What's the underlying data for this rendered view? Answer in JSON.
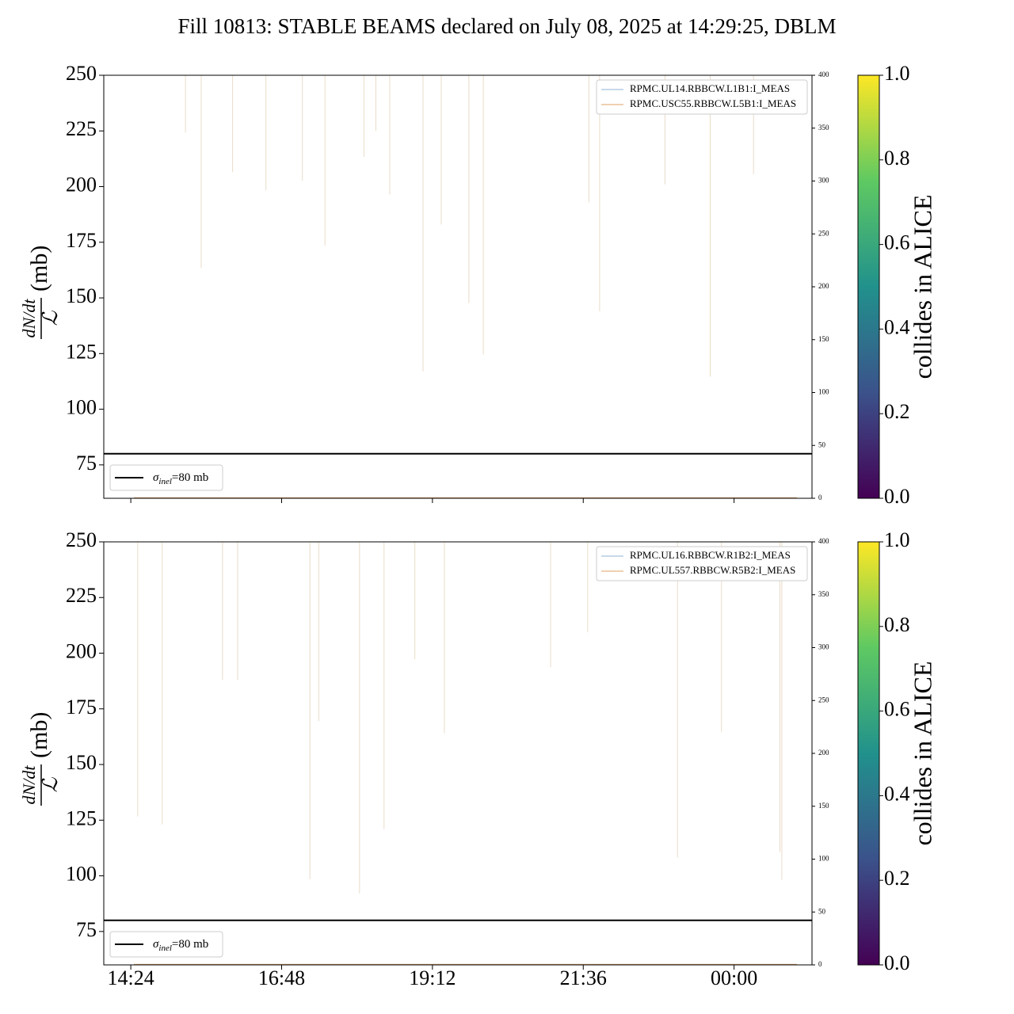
{
  "figure_title": "Fill 10813: STABLE BEAMS declared on July 08, 2025 at 14:29:25, DBLM",
  "chart_data": [
    {
      "type": "line",
      "ylabel": {
        "numerator": "dN/dt",
        "denominator": "ℒ",
        "unit": "(mb)"
      },
      "xlim": [
        13.97,
        25.24
      ],
      "xticks": [
        {
          "value": 14.4,
          "label": "14:24"
        },
        {
          "value": 16.8,
          "label": "16:48"
        },
        {
          "value": 19.2,
          "label": "19:12"
        },
        {
          "value": 21.6,
          "label": "21:36"
        },
        {
          "value": 24,
          "label": "00:00"
        }
      ],
      "show_xtick_labels": false,
      "ylim": [
        60,
        250
      ],
      "yticks": [
        75,
        100,
        125,
        150,
        175,
        200,
        225,
        250
      ],
      "y2lim": [
        0,
        400
      ],
      "y2ticks": [
        0,
        50,
        100,
        150,
        200,
        250,
        300,
        350,
        400
      ],
      "hline": {
        "value": 80,
        "color": "#000000",
        "symbol": "σ",
        "subscript": "inel",
        "text": "=80 mb",
        "legend": "lower left"
      },
      "spikes": {
        "color": "#e9dcc8",
        "x": [
          15.27,
          15.52,
          16.02,
          16.55,
          17.13,
          17.49,
          18.11,
          18.3,
          18.52,
          19.05,
          19.34,
          19.78,
          20.01,
          21.69,
          21.86,
          22.9,
          23.62,
          24.31
        ],
        "values": [
          224.3,
          163.4,
          206.5,
          198.3,
          202.6,
          173.4,
          213.3,
          225,
          196.5,
          117,
          183,
          147.7,
          124.6,
          193,
          144,
          201,
          114.6,
          205.5
        ]
      },
      "legend": "upper right",
      "series": [
        {
          "name": "RPMC.UL14.RBBCW.L1B1:I_MEAS",
          "color": "#8fb0d6",
          "axis": "y2",
          "x": [
            14.45,
            25.0
          ],
          "values": [
            0.5,
            0.5
          ]
        },
        {
          "name": "RPMC.USC55.RBBCW.L5B1:I_MEAS",
          "color": "#e0a060",
          "axis": "y2",
          "x": [
            14.45,
            25.0
          ],
          "values": [
            0.5,
            0.5
          ]
        }
      ],
      "colorbar": {
        "label": "collides in ALICE",
        "lim": [
          0,
          1
        ],
        "ticks": [
          {
            "value": 0,
            "label": "0.0"
          },
          {
            "value": 0.2,
            "label": "0.2"
          },
          {
            "value": 0.4,
            "label": "0.4"
          },
          {
            "value": 0.6,
            "label": "0.6"
          },
          {
            "value": 0.8,
            "label": "0.8"
          },
          {
            "value": 1,
            "label": "1.0"
          }
        ]
      }
    },
    {
      "type": "line",
      "ylabel": {
        "numerator": "dN/dt",
        "denominator": "ℒ",
        "unit": "(mb)"
      },
      "xlim": [
        13.97,
        25.24
      ],
      "xticks": [
        {
          "value": 14.4,
          "label": "14:24"
        },
        {
          "value": 16.8,
          "label": "16:48"
        },
        {
          "value": 19.2,
          "label": "19:12"
        },
        {
          "value": 21.6,
          "label": "21:36"
        },
        {
          "value": 24,
          "label": "00:00"
        }
      ],
      "show_xtick_labels": true,
      "ylim": [
        60,
        250
      ],
      "yticks": [
        75,
        100,
        125,
        150,
        175,
        200,
        225,
        250
      ],
      "y2lim": [
        0,
        400
      ],
      "y2ticks": [
        0,
        50,
        100,
        150,
        200,
        250,
        300,
        350,
        400
      ],
      "hline": {
        "value": 80,
        "color": "#000000",
        "symbol": "σ",
        "subscript": "inel",
        "text": "=80 mb",
        "legend": "lower left"
      },
      "spikes": {
        "color": "#e9dcc8",
        "x": [
          14.51,
          14.9,
          15.86,
          16.1,
          17.25,
          17.39,
          18.04,
          18.43,
          18.92,
          19.39,
          21.08,
          21.67,
          23.1,
          23.8,
          24.73,
          24.76
        ],
        "values": [
          126.7,
          123.1,
          188,
          188,
          98.5,
          169.5,
          92.1,
          121,
          197.3,
          164.1,
          193.7,
          209.4,
          108.2,
          164.5,
          110.6,
          98.2
        ]
      },
      "legend": "upper right",
      "series": [
        {
          "name": "RPMC.UL16.RBBCW.R1B2:I_MEAS",
          "color": "#8fb0d6",
          "axis": "y2",
          "x": [
            14.45,
            25.0
          ],
          "values": [
            0.5,
            0.5
          ]
        },
        {
          "name": "RPMC.UL557.RBBCW.R5B2:I_MEAS",
          "color": "#e0a060",
          "axis": "y2",
          "x": [
            14.45,
            25.0
          ],
          "values": [
            0.5,
            0.5
          ]
        }
      ],
      "colorbar": {
        "label": "collides in ALICE",
        "lim": [
          0,
          1
        ],
        "ticks": [
          {
            "value": 0,
            "label": "0.0"
          },
          {
            "value": 0.2,
            "label": "0.2"
          },
          {
            "value": 0.4,
            "label": "0.4"
          },
          {
            "value": 0.6,
            "label": "0.6"
          },
          {
            "value": 0.8,
            "label": "0.8"
          },
          {
            "value": 1,
            "label": "1.0"
          }
        ]
      }
    }
  ]
}
